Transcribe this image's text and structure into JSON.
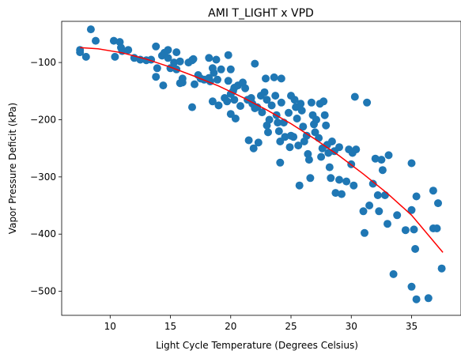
{
  "chart_data": {
    "type": "scatter",
    "title": "AMI T_LIGHT x VPD",
    "xlabel": "Light Cycle Temperature (Degrees Celsius)",
    "ylabel": "Vapor Pressure Deficit (kPa)",
    "xlim": [
      5.98,
      39.1
    ],
    "ylim": [
      -542,
      -28
    ],
    "xticks": [
      10,
      15,
      20,
      25,
      30,
      35
    ],
    "yticks": [
      -100,
      -200,
      -300,
      -400,
      -500
    ],
    "grid": false,
    "colors": {
      "points": "#1f77b4",
      "fit": "#ff0000"
    },
    "series": [
      {
        "marker": "circle",
        "points": [
          [
            7.5,
            -78
          ],
          [
            7.5,
            -82
          ],
          [
            8.0,
            -90
          ],
          [
            8.4,
            -42
          ],
          [
            8.8,
            -62
          ],
          [
            10.3,
            -62
          ],
          [
            10.4,
            -90
          ],
          [
            10.8,
            -64
          ],
          [
            10.9,
            -74
          ],
          [
            11.0,
            -80
          ],
          [
            11.5,
            -78
          ],
          [
            12.0,
            -92
          ],
          [
            12.5,
            -95
          ],
          [
            13.0,
            -96
          ],
          [
            13.4,
            -95
          ],
          [
            13.8,
            -72
          ],
          [
            13.8,
            -125
          ],
          [
            13.9,
            -110
          ],
          [
            14.3,
            -88
          ],
          [
            14.5,
            -83
          ],
          [
            14.4,
            -140
          ],
          [
            14.8,
            -78
          ],
          [
            14.8,
            -92
          ],
          [
            15.0,
            -110
          ],
          [
            15.3,
            -100
          ],
          [
            15.5,
            -82
          ],
          [
            15.5,
            -112
          ],
          [
            15.8,
            -98
          ],
          [
            15.8,
            -136
          ],
          [
            16.0,
            -135
          ],
          [
            16.0,
            -128
          ],
          [
            16.5,
            -100
          ],
          [
            16.8,
            -96
          ],
          [
            16.9,
            -94
          ],
          [
            16.8,
            -178
          ],
          [
            17.3,
            -122
          ],
          [
            17.0,
            -138
          ],
          [
            17.5,
            -128
          ],
          [
            17.8,
            -130
          ],
          [
            18.2,
            -92
          ],
          [
            18.2,
            -127
          ],
          [
            18.3,
            -133
          ],
          [
            18.5,
            -110
          ],
          [
            18.6,
            -118
          ],
          [
            18.5,
            -168
          ],
          [
            18.8,
            -95
          ],
          [
            18.9,
            -130
          ],
          [
            19.0,
            -175
          ],
          [
            19.2,
            -112
          ],
          [
            19.5,
            -162
          ],
          [
            19.7,
            -168
          ],
          [
            19.8,
            -87
          ],
          [
            19.8,
            -132
          ],
          [
            20.0,
            -112
          ],
          [
            20.0,
            -155
          ],
          [
            20.0,
            -190
          ],
          [
            20.2,
            -150
          ],
          [
            20.3,
            -144
          ],
          [
            20.3,
            -165
          ],
          [
            20.4,
            -198
          ],
          [
            20.6,
            -140
          ],
          [
            20.8,
            -176
          ],
          [
            21.0,
            -135
          ],
          [
            21.2,
            -145
          ],
          [
            21.4,
            -165
          ],
          [
            21.5,
            -236
          ],
          [
            21.7,
            -162
          ],
          [
            21.8,
            -172
          ],
          [
            21.9,
            -250
          ],
          [
            22.0,
            -102
          ],
          [
            22.0,
            -180
          ],
          [
            22.2,
            -178
          ],
          [
            22.3,
            -240
          ],
          [
            22.5,
            -158
          ],
          [
            22.6,
            -187
          ],
          [
            22.8,
            -152
          ],
          [
            22.9,
            -128
          ],
          [
            23.0,
            -165
          ],
          [
            23.0,
            -210
          ],
          [
            23.1,
            -222
          ],
          [
            23.2,
            -200
          ],
          [
            23.4,
            -175
          ],
          [
            23.6,
            -126
          ],
          [
            23.7,
            -158
          ],
          [
            23.8,
            -192
          ],
          [
            23.9,
            -205
          ],
          [
            24.0,
            -220
          ],
          [
            24.1,
            -238
          ],
          [
            24.1,
            -275
          ],
          [
            24.2,
            -128
          ],
          [
            24.2,
            -170
          ],
          [
            24.4,
            -205
          ],
          [
            24.5,
            -230
          ],
          [
            24.8,
            -188
          ],
          [
            24.9,
            -248
          ],
          [
            25.0,
            -158
          ],
          [
            25.0,
            -228
          ],
          [
            25.2,
            -230
          ],
          [
            25.3,
            -165
          ],
          [
            25.4,
            -178
          ],
          [
            25.5,
            -198
          ],
          [
            25.6,
            -245
          ],
          [
            25.7,
            -315
          ],
          [
            25.8,
            -172
          ],
          [
            25.9,
            -184
          ],
          [
            26.0,
            -212
          ],
          [
            26.1,
            -238
          ],
          [
            26.3,
            -228
          ],
          [
            26.4,
            -260
          ],
          [
            26.5,
            -270
          ],
          [
            26.6,
            -302
          ],
          [
            26.7,
            -170
          ],
          [
            26.8,
            -192
          ],
          [
            26.9,
            -208
          ],
          [
            27.0,
            -222
          ],
          [
            27.1,
            -200
          ],
          [
            27.3,
            -232
          ],
          [
            27.4,
            -172
          ],
          [
            27.5,
            -265
          ],
          [
            27.6,
            -250
          ],
          [
            27.7,
            -168
          ],
          [
            27.8,
            -192
          ],
          [
            27.9,
            -210
          ],
          [
            28.0,
            -244
          ],
          [
            28.1,
            -258
          ],
          [
            28.2,
            -283
          ],
          [
            28.3,
            -302
          ],
          [
            28.4,
            -238
          ],
          [
            28.6,
            -255
          ],
          [
            28.7,
            -328
          ],
          [
            29.0,
            -248
          ],
          [
            29.0,
            -305
          ],
          [
            29.2,
            -330
          ],
          [
            29.6,
            -308
          ],
          [
            29.8,
            -252
          ],
          [
            30.0,
            -278
          ],
          [
            30.1,
            -258
          ],
          [
            30.2,
            -315
          ],
          [
            30.3,
            -160
          ],
          [
            30.4,
            -252
          ],
          [
            31.0,
            -360
          ],
          [
            31.1,
            -398
          ],
          [
            31.3,
            -170
          ],
          [
            31.5,
            -350
          ],
          [
            31.8,
            -312
          ],
          [
            32.0,
            -268
          ],
          [
            32.2,
            -332
          ],
          [
            32.3,
            -360
          ],
          [
            32.5,
            -270
          ],
          [
            32.6,
            -288
          ],
          [
            32.8,
            -332
          ],
          [
            33.0,
            -382
          ],
          [
            33.1,
            -262
          ],
          [
            33.5,
            -470
          ],
          [
            33.8,
            -367
          ],
          [
            34.5,
            -393
          ],
          [
            35.0,
            -358
          ],
          [
            35.0,
            -276
          ],
          [
            35.0,
            -492
          ],
          [
            35.2,
            -392
          ],
          [
            35.4,
            -334
          ],
          [
            35.3,
            -426
          ],
          [
            35.4,
            -514
          ],
          [
            36.4,
            -512
          ],
          [
            36.8,
            -324
          ],
          [
            36.8,
            -390
          ],
          [
            37.1,
            -390
          ],
          [
            37.2,
            -346
          ],
          [
            37.5,
            -460
          ]
        ]
      },
      {
        "type": "line",
        "x": [
          7.5,
          9,
          11,
          13,
          15,
          17,
          19,
          21,
          23,
          25,
          27,
          29,
          31,
          33,
          35,
          37.6
        ],
        "y": [
          -74,
          -76,
          -83,
          -94,
          -108,
          -124,
          -141,
          -161,
          -183,
          -207,
          -234,
          -263,
          -295,
          -329,
          -367,
          -432
        ]
      }
    ]
  }
}
